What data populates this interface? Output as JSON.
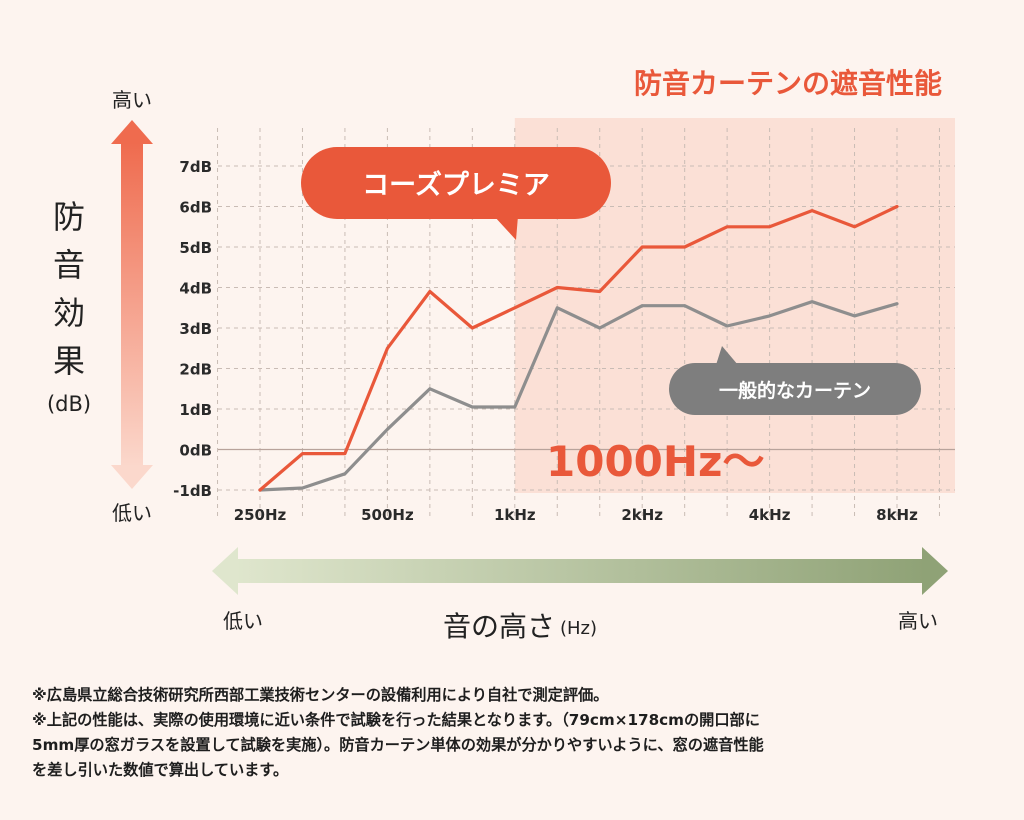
{
  "colors": {
    "background": "#fdf4ef",
    "premium": "#e9583a",
    "general": "#8e8e8e",
    "highlight_region": "#fbe0d6",
    "frequency_arrow": "#9caf7e"
  },
  "chart_data": {
    "type": "line",
    "title": "防音カーテンの遮音性能",
    "ylabel": "防音効果",
    "ylabel_unit": "(dB)",
    "xlabel": "音の高さ",
    "xlabel_unit": "(Hz)",
    "y_axis_high": "高い",
    "y_axis_low": "低い",
    "x_axis_low": "低い",
    "x_axis_high": "高い",
    "x_ticks": [
      "250Hz",
      "500Hz",
      "1kHz",
      "2kHz",
      "4kHz",
      "8kHz"
    ],
    "y_ticks": [
      "-1dB",
      "0dB",
      "1dB",
      "2dB",
      "3dB",
      "4dB",
      "5dB",
      "6dB",
      "7dB"
    ],
    "ylim": [
      -1,
      7
    ],
    "highlight_label": "1000Hz〜",
    "highlight_from": 6,
    "series": [
      {
        "name": "コーズプレミア",
        "values": [
          -1,
          -0.1,
          -0.1,
          2.5,
          3.9,
          3.0,
          3.5,
          4.0,
          3.9,
          5.0,
          5.0,
          5.5,
          5.5,
          5.9,
          5.5,
          6.0
        ]
      },
      {
        "name": "一般的なカーテン",
        "values": [
          -1,
          -0.95,
          -0.6,
          0.5,
          1.5,
          1.05,
          1.05,
          3.5,
          3.0,
          3.55,
          3.55,
          3.05,
          3.3,
          3.65,
          3.3,
          3.6
        ]
      }
    ]
  },
  "footnotes": [
    "※広島県立総合技術研究所西部工業技術センターの設備利用により自社で測定評価。",
    "※上記の性能は、実際の使用環境に近い条件で試験を行った結果となります。（79cm×178cmの開口部に",
    "5mm厚の窓ガラスを設置して試験を実施）。防音カーテン単体の効果が分かりやすいように、窓の遮音性能",
    "を差し引いた数値で算出しています。"
  ]
}
